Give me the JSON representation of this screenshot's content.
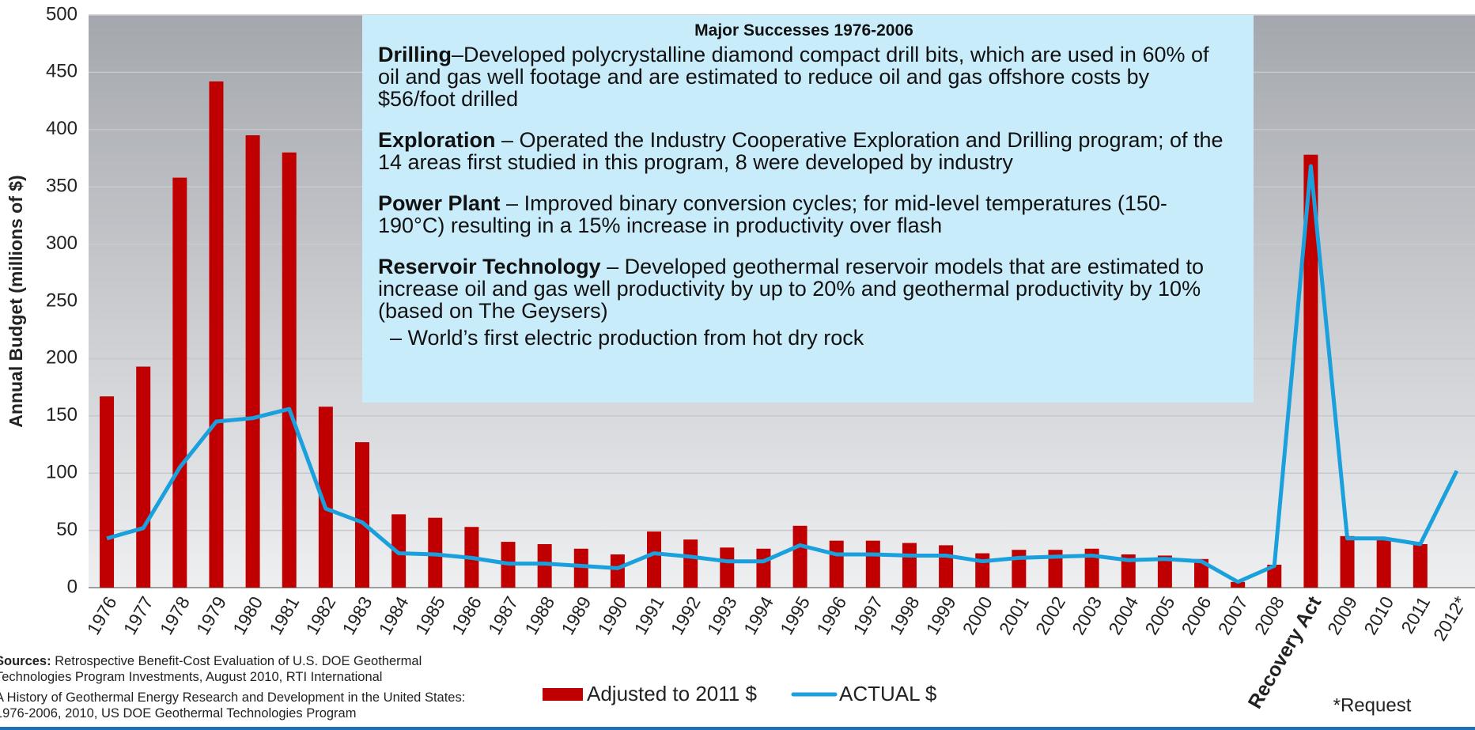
{
  "chart_data": {
    "type": "bar",
    "ylabel": "Annual Budget (millions of $)",
    "categories": [
      "1976",
      "1977",
      "1978",
      "1979",
      "1980",
      "1981",
      "1982",
      "1983",
      "1984",
      "1985",
      "1986",
      "1987",
      "1988",
      "1989",
      "1990",
      "1991",
      "1992",
      "1993",
      "1994",
      "1995",
      "1996",
      "1997",
      "1998",
      "1999",
      "2000",
      "2001",
      "2002",
      "2003",
      "2004",
      "2005",
      "2006",
      "2007",
      "2008",
      "Recovery Act",
      "2009",
      "2010",
      "2011",
      "2012*"
    ],
    "series": [
      {
        "name": "Adjusted to 2011 $",
        "color": "#c00000",
        "type": "bar",
        "values": [
          167,
          193,
          358,
          442,
          395,
          380,
          158,
          127,
          64,
          61,
          53,
          40,
          38,
          34,
          29,
          49,
          42,
          35,
          34,
          54,
          41,
          41,
          39,
          37,
          30,
          33,
          33,
          34,
          29,
          28,
          25,
          5,
          20,
          378,
          45,
          43,
          38,
          null
        ]
      },
      {
        "name": "ACTUAL $",
        "color": "#1aa0dc",
        "type": "line",
        "values": [
          43,
          52,
          105,
          145,
          148,
          156,
          69,
          57,
          30,
          29,
          26,
          21,
          21,
          19,
          17,
          30,
          27,
          23,
          23,
          37,
          29,
          29,
          28,
          28,
          23,
          26,
          27,
          28,
          24,
          25,
          23,
          5,
          19,
          368,
          43,
          43,
          38,
          102
        ]
      }
    ],
    "ylim": [
      0,
      500
    ],
    "yticks": [
      0,
      50,
      100,
      150,
      200,
      250,
      300,
      350,
      400,
      450,
      500
    ],
    "grid": true,
    "annotation": {
      "title": "Major Successes 1976-2006",
      "items": [
        {
          "heading": "Drilling",
          "text": "–Developed polycrystalline diamond compact drill bits, which are used in 60% of oil and gas well footage and are estimated to reduce oil and gas offshore costs by $56/foot drilled"
        },
        {
          "heading": "Exploration",
          "text": " – Operated the Industry Cooperative Exploration and Drilling program; of the 14 areas first studied in this program, 8 were developed by industry"
        },
        {
          "heading": "Power Plant",
          "text": " – Improved binary conversion cycles; for mid-level temperatures (150-190°C) resulting in a 15% increase in productivity over flash"
        },
        {
          "heading": "Reservoir Technology",
          "text": " – Developed geothermal reservoir models that are estimated to increase oil and gas well productivity by up to 20% and geothermal productivity by 10% (based on The Geysers)"
        }
      ],
      "extra": "– World’s first electric production from hot dry rock"
    },
    "sources": {
      "label": "Sources:",
      "items": [
        "Retrospective Benefit-Cost Evaluation of U.S. DOE Geothermal Technologies Program Investments, August 2010, RTI International",
        "A History of Geothermal Energy Research and Development in the United States: 1976-2006, 2010, US DOE Geothermal Technologies Program"
      ]
    },
    "note": "*Request"
  }
}
